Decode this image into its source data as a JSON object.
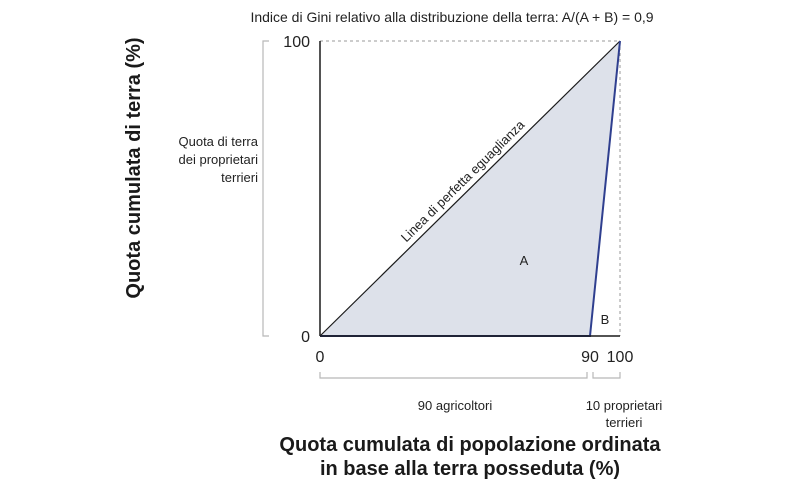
{
  "chart_data": {
    "type": "area",
    "title": "Indice di Gini relativo alla distribuzione della terra: A/(A + B) = 0,9",
    "xlabel_lines": [
      "Quota cumulata di popolazione ordinata",
      "in base alla terra posseduta (%)"
    ],
    "ylabel": "Quota cumulata di terra (%)",
    "xlim": [
      0,
      100
    ],
    "ylim": [
      0,
      100
    ],
    "x_ticks": [
      "0",
      "90",
      "100"
    ],
    "y_ticks": [
      "0",
      "100"
    ],
    "equality_line": {
      "label": "Linea di perfetta eguaglianza",
      "points": [
        [
          0,
          0
        ],
        [
          100,
          100
        ]
      ]
    },
    "lorenz_curve": {
      "points": [
        [
          0,
          0
        ],
        [
          90,
          0
        ],
        [
          100,
          100
        ]
      ]
    },
    "region_labels": {
      "A": "A",
      "B": "B"
    },
    "y_bracket_label": [
      "Quota di terra",
      "dei proprietari",
      "terrieri"
    ],
    "x_bracket_labels": {
      "first": [
        "90 agricoltori"
      ],
      "second": [
        "10 proprietari",
        "terrieri"
      ]
    },
    "colors": {
      "fill": "#dde1ea",
      "lorenz": "#2f3f8f",
      "equality": "#1a1a1a",
      "axis": "#1a1a1a",
      "bracket": "#b8b8b8"
    }
  }
}
